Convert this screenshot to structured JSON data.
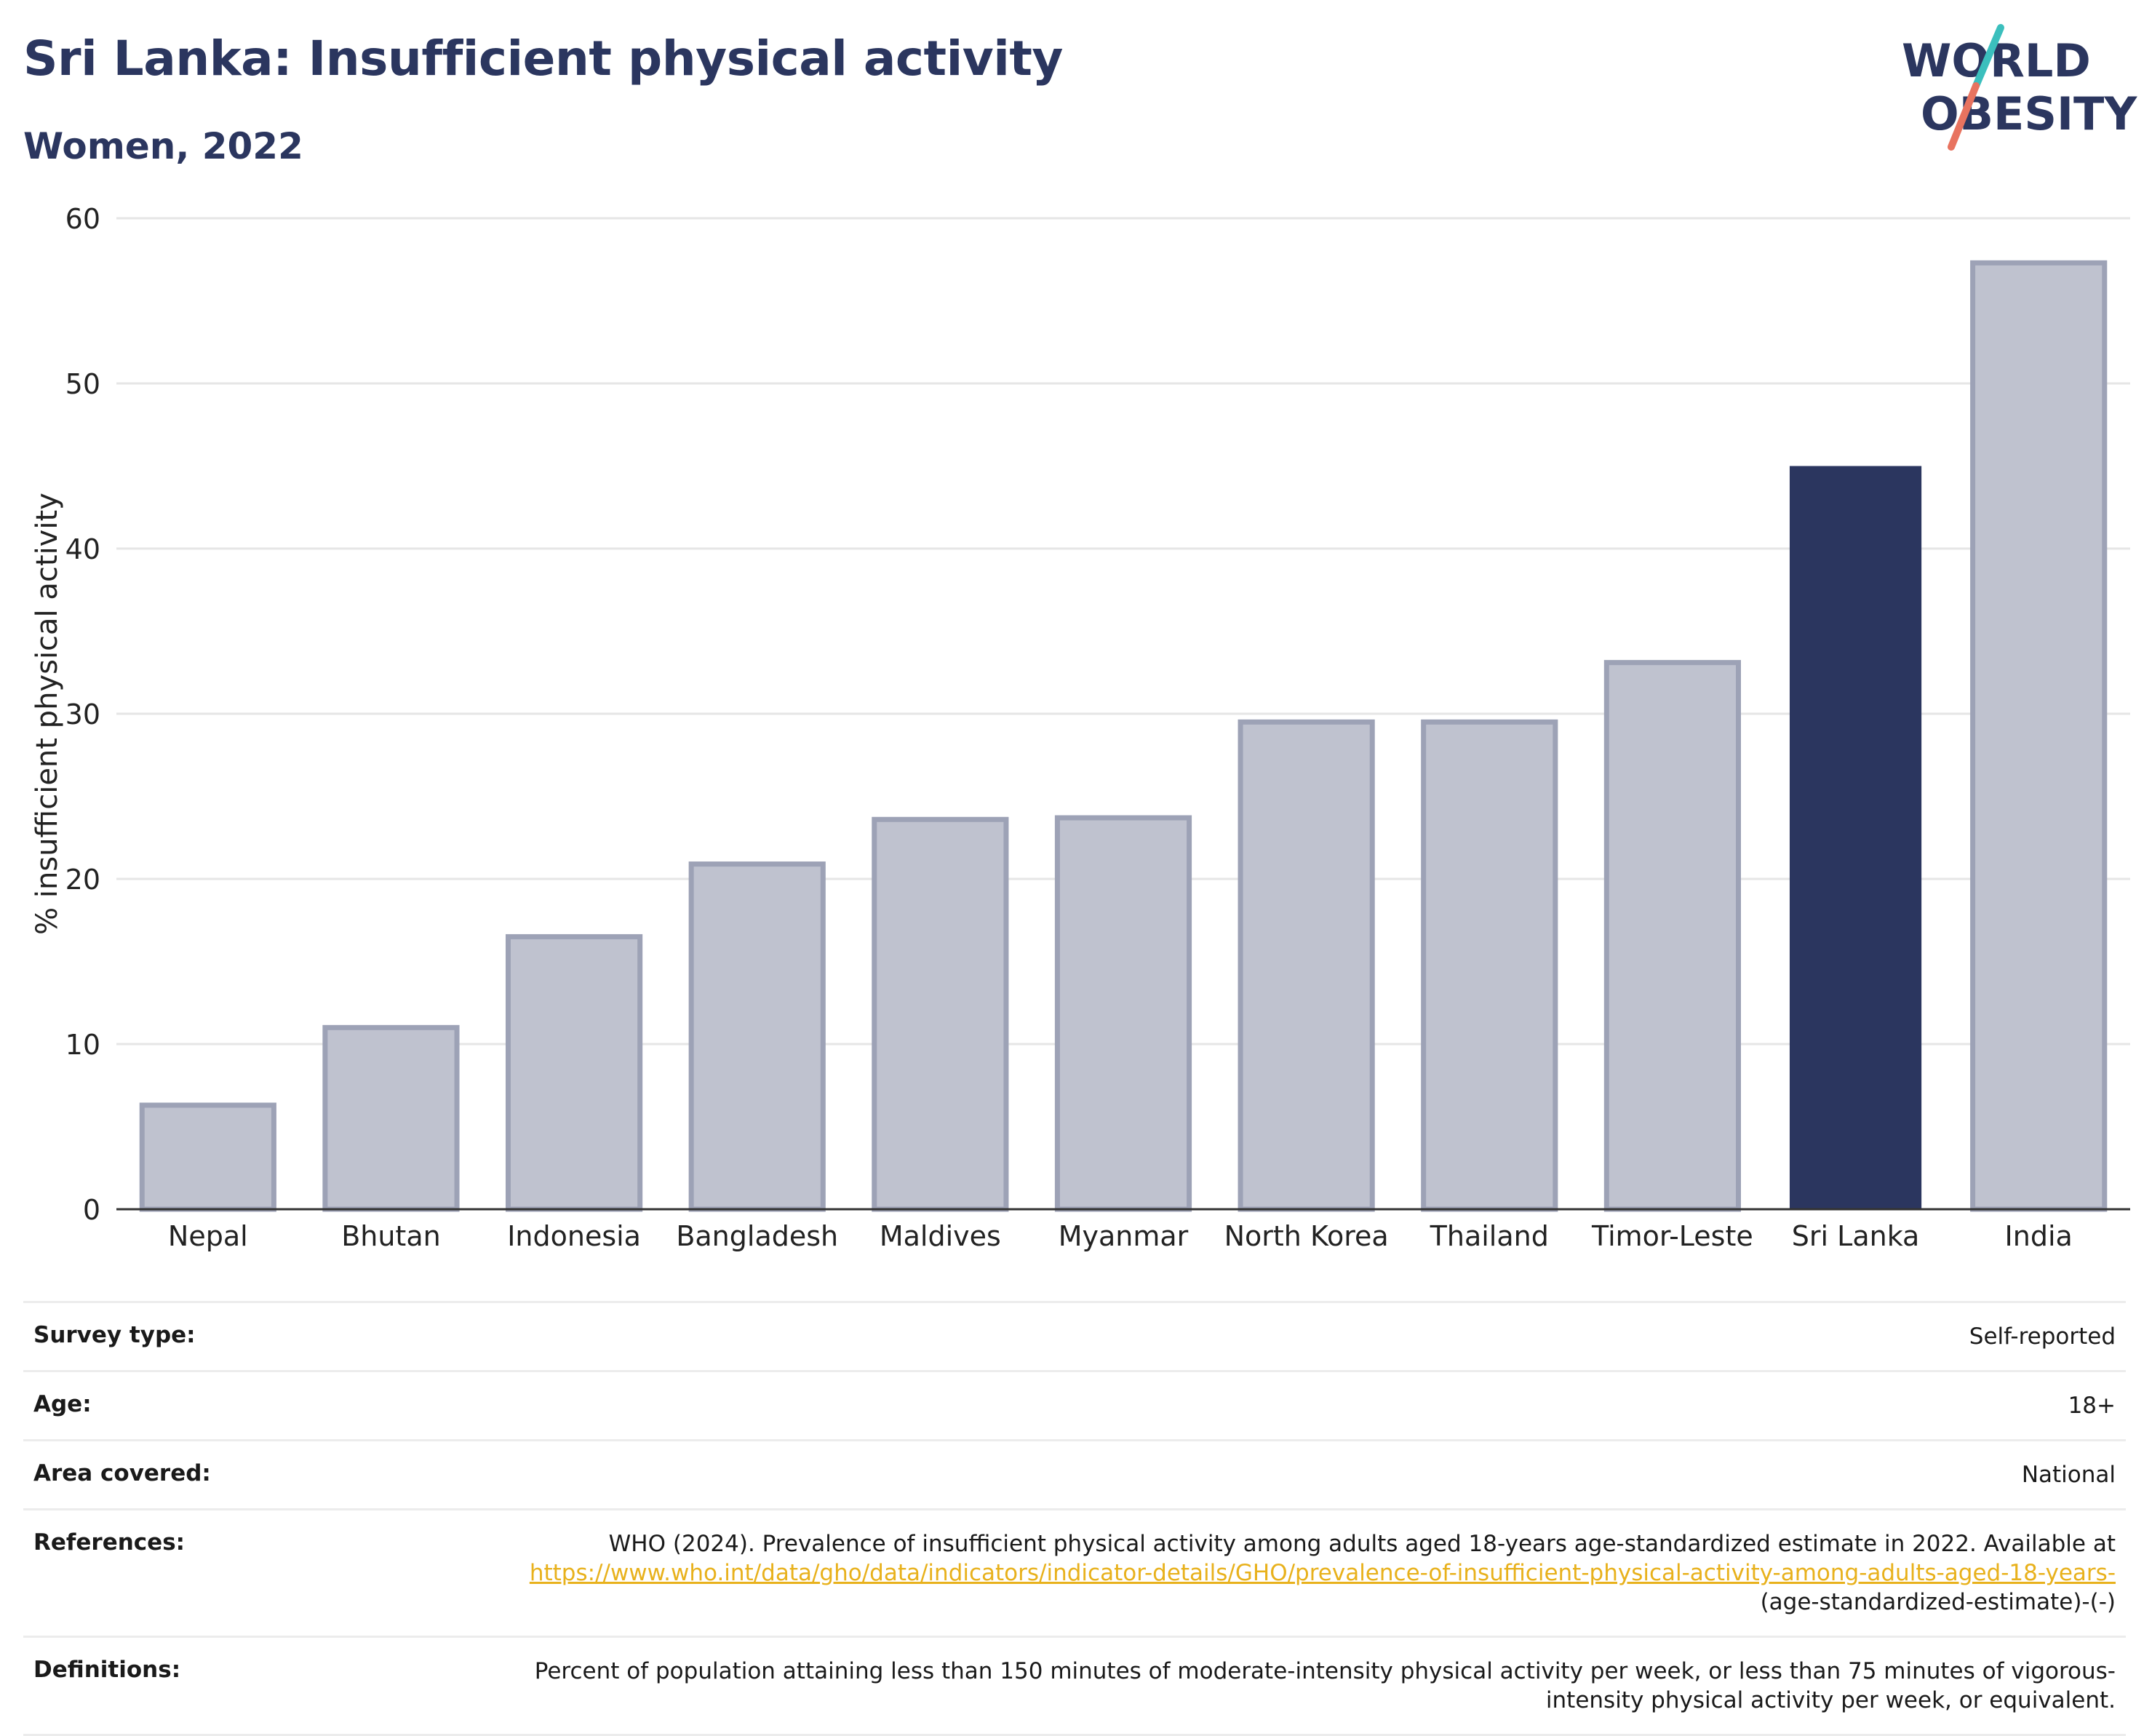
{
  "header": {
    "title": "Sri Lanka: Insufficient physical activity",
    "subtitle": "Women, 2022"
  },
  "logo": {
    "line1": "WORLD",
    "line2": "OBESITY",
    "colors": {
      "text": "#2b365f",
      "slash_top": "#3bbfbd",
      "slash_bottom": "#e8735f"
    }
  },
  "chart_data": {
    "type": "bar",
    "categories": [
      "Nepal",
      "Bhutan",
      "Indonesia",
      "Bangladesh",
      "Maldives",
      "Myanmar",
      "North Korea",
      "Thailand",
      "Timor-Leste",
      "Sri Lanka",
      "India"
    ],
    "values": [
      6.3,
      11.0,
      16.5,
      20.9,
      23.6,
      23.7,
      29.5,
      29.5,
      33.1,
      45.0,
      57.3
    ],
    "highlight": "Sri Lanka",
    "ylabel": "% insufficient physical activity",
    "xlabel": "",
    "ylim": [
      0,
      60
    ],
    "yticks": [
      0,
      10,
      20,
      30,
      40,
      50,
      60
    ],
    "grid": true,
    "colors": {
      "bar": "#bfc2cf",
      "bar_border": "#9da2b6",
      "highlight": "#2b365f",
      "grid": "#e6e6e6",
      "axis": "#333333"
    }
  },
  "info_table": {
    "survey_type": {
      "label": "Survey type:",
      "value": "Self-reported"
    },
    "age": {
      "label": "Age:",
      "value": "18+"
    },
    "area": {
      "label": "Area covered:",
      "value": "National"
    },
    "references": {
      "label": "References:",
      "text_before": "WHO (2024). Prevalence of insufficient physical activity among adults aged 18-years age-standardized estimate in 2022. Available at ",
      "link": "https://www.who.int/data/gho/data/indicators/indicator-details/GHO/prevalence-of-insufficient-physical-activity-among-adults-aged-18-years-",
      "text_after": "(age-standardized-estimate)-(-)"
    },
    "definitions": {
      "label": "Definitions:",
      "value": "Percent of population attaining less than 150 minutes of moderate-intensity physical activity per week, or less than 75 minutes of vigorous-intensity physical activity per week, or equivalent."
    }
  }
}
